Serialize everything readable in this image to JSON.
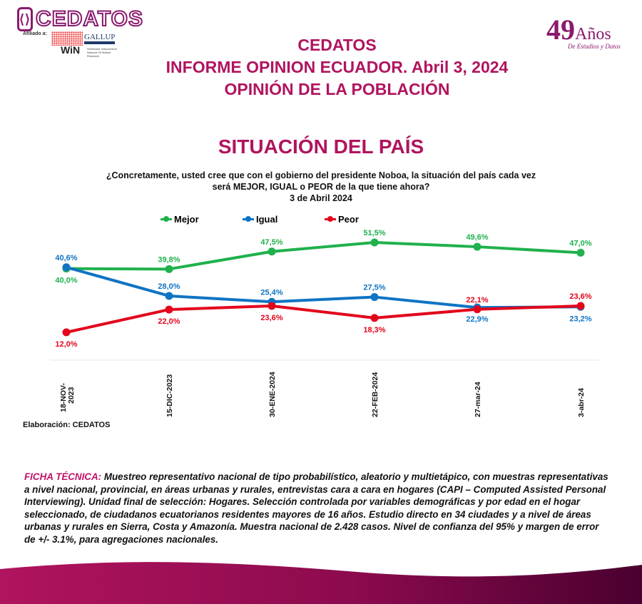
{
  "header": {
    "logo_text": "CEDATOS",
    "affiliation_label": "Afiliado a:",
    "win_text": "WiN",
    "win_subtitle": "Worldwide Independent Network Of Market Research",
    "gallup_text": "GALLUP",
    "anniversary_number": "49",
    "anniversary_word": "Años",
    "anniversary_sub": "De Estudios y Datos",
    "title_lines": [
      "CEDATOS",
      "INFORME OPINION ECUADOR. Abril 3, 2024",
      "OPINIÓN DE LA POBLACIÓN"
    ]
  },
  "section_title": "SITUACIÓN DEL PAÍS",
  "question_lines": [
    "¿Concretamente, usted cree que con el gobierno del presidente Noboa, la situación del país cada vez",
    "será MEJOR, IGUAL o PEOR de la que tiene ahora?",
    "3 de Abril 2024"
  ],
  "chart_data": {
    "type": "line",
    "categories": [
      "18-NOV-2023",
      "15-DIC-2023",
      "30-ENE-2024",
      "22-FEB-2024",
      "27-mar-24",
      "3-abr-24"
    ],
    "series": [
      {
        "name": "Mejor",
        "color": "#1fb14c",
        "values": [
          40.0,
          39.8,
          47.5,
          51.5,
          49.6,
          47.0
        ],
        "labels": [
          "40,0%",
          "39,8%",
          "47,5%",
          "51,5%",
          "49,6%",
          "47,0%"
        ]
      },
      {
        "name": "Igual",
        "color": "#0f74c4",
        "values": [
          40.6,
          28.0,
          25.4,
          27.5,
          22.9,
          23.2
        ],
        "labels": [
          "40,6%",
          "28,0%",
          "25,4%",
          "27,5%",
          "22,9%",
          "23,2%"
        ]
      },
      {
        "name": "Peor",
        "color": "#e3061b",
        "values": [
          12.0,
          22.0,
          23.6,
          18.3,
          22.1,
          23.6
        ],
        "labels": [
          "12,0%",
          "22,0%",
          "23,6%",
          "18,3%",
          "22,1%",
          "23,6%"
        ]
      }
    ],
    "legend": "top",
    "grid": false,
    "ylim": [
      12,
      51.5
    ]
  },
  "source": "Elaboración: CEDATOS",
  "ficha": {
    "label": "FICHA TÉCNICA:",
    "text": " Muestreo representativo nacional de tipo probabilístico, aleatorio y multietápico, con muestras representativas a nivel nacional, provincial, en áreas urbanas y rurales, entrevistas cara a cara en hogares (CAPI – Computed Assisted Personal Interviewing). Unidad final de selección: Hogares. Selección controlada por variables demográficas y por edad en el hogar seleccionado, de ciudadanos ecuatorianos residentes mayores de 16 años. Estudio directo en 34 ciudades y a nivel de áreas urbanas y rurales en Sierra, Costa y Amazonía. Muestra nacional de 2.428 casos. Nivel de confianza del 95% y margen de error de +/- 3.1%, para agregaciones nacionales."
  },
  "colors": {
    "brand": "#b0145e",
    "band_start": "#b0145e",
    "band_end": "#4a0030"
  }
}
